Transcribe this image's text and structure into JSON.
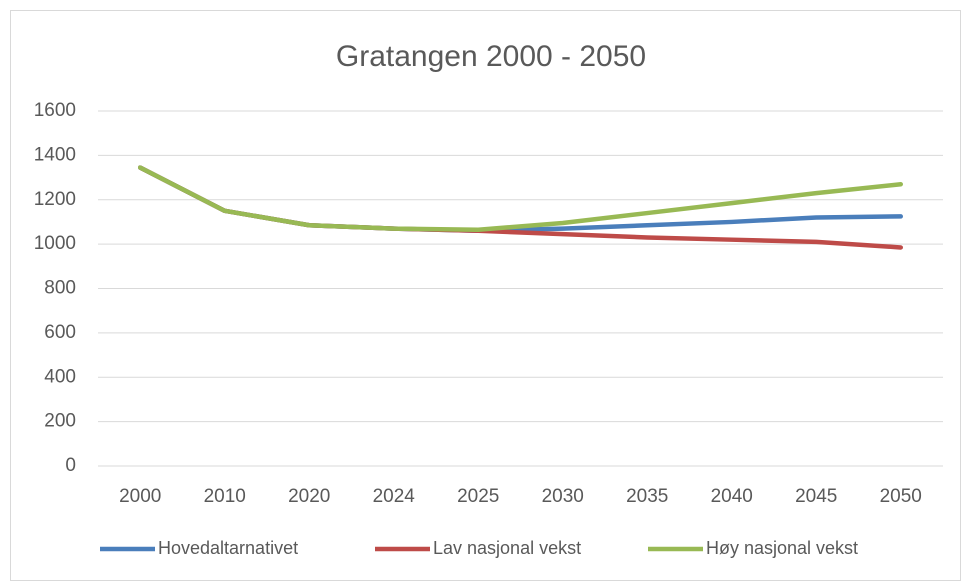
{
  "chart_data": {
    "type": "line",
    "title": "Gratangen 2000 - 2050",
    "categories": [
      "2000",
      "2010",
      "2020",
      "2024",
      "2025",
      "2030",
      "2035",
      "2040",
      "2045",
      "2050"
    ],
    "series": [
      {
        "name": "Hovedaltarnativet",
        "color": "#4a7ebb",
        "values": [
          1345,
          1150,
          1085,
          1070,
          1060,
          1070,
          1085,
          1100,
          1120,
          1125
        ]
      },
      {
        "name": "Lav nasjonal vekst",
        "color": "#be4b48",
        "values": [
          1345,
          1150,
          1085,
          1070,
          1060,
          1045,
          1030,
          1020,
          1010,
          985
        ]
      },
      {
        "name": "Høy nasjonal vekst",
        "color": "#98b954",
        "values": [
          1345,
          1150,
          1085,
          1070,
          1065,
          1095,
          1140,
          1185,
          1230,
          1270
        ]
      }
    ],
    "ylim": [
      0,
      1600
    ],
    "yticks": [
      0,
      200,
      400,
      600,
      800,
      1000,
      1200,
      1400,
      1600
    ],
    "grid": true,
    "legend": "bottom"
  }
}
